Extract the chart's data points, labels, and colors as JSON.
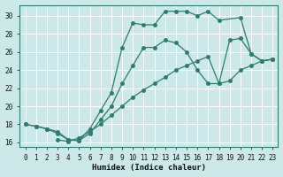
{
  "xlabel": "Humidex (Indice chaleur)",
  "bg_color": "#cce8e8",
  "grid_color": "#b0d0d0",
  "line_color": "#2d7d6e",
  "xlim": [
    -0.5,
    23.5
  ],
  "ylim": [
    15.5,
    31.2
  ],
  "xticks": [
    0,
    1,
    2,
    3,
    4,
    5,
    6,
    7,
    8,
    9,
    10,
    11,
    12,
    13,
    14,
    15,
    16,
    17,
    18,
    19,
    20,
    21,
    22,
    23
  ],
  "yticks": [
    16,
    18,
    20,
    22,
    24,
    26,
    28,
    30
  ],
  "line1_x": [
    0,
    1,
    2,
    3,
    4,
    5,
    6,
    7,
    8,
    9,
    10,
    11,
    12,
    13,
    14,
    15,
    16,
    17,
    18,
    20,
    21,
    22,
    23
  ],
  "line1_y": [
    18,
    17.8,
    17.5,
    17.0,
    16.3,
    16.2,
    17.5,
    19.5,
    21.5,
    26.5,
    29.2,
    29.0,
    29.0,
    30.5,
    30.5,
    30.5,
    30.0,
    30.5,
    29.5,
    29.8,
    25.8,
    25.0,
    25.2
  ],
  "line2_x": [
    0,
    1,
    2,
    3,
    4,
    5,
    6,
    7,
    8,
    9,
    10,
    11,
    12,
    13,
    14,
    15,
    16,
    17,
    18,
    19,
    20,
    21,
    22,
    23
  ],
  "line2_y": [
    18,
    17.8,
    17.5,
    17.2,
    16.3,
    16.2,
    17.0,
    18.5,
    20.0,
    22.5,
    24.5,
    26.5,
    26.5,
    27.3,
    27.0,
    26.0,
    24.0,
    22.5,
    22.5,
    27.3,
    27.5,
    25.8,
    25.0,
    25.2
  ],
  "line3_x": [
    3,
    4,
    5,
    6,
    7,
    8,
    9,
    10,
    11,
    12,
    13,
    14,
    15,
    16,
    17,
    18,
    19,
    20,
    21,
    22,
    23
  ],
  "line3_y": [
    16.3,
    16.1,
    16.5,
    17.2,
    18.0,
    19.0,
    20.0,
    21.0,
    21.8,
    22.5,
    23.2,
    24.0,
    24.5,
    25.0,
    25.5,
    22.5,
    22.8,
    24.0,
    24.5,
    25.0,
    25.2
  ]
}
